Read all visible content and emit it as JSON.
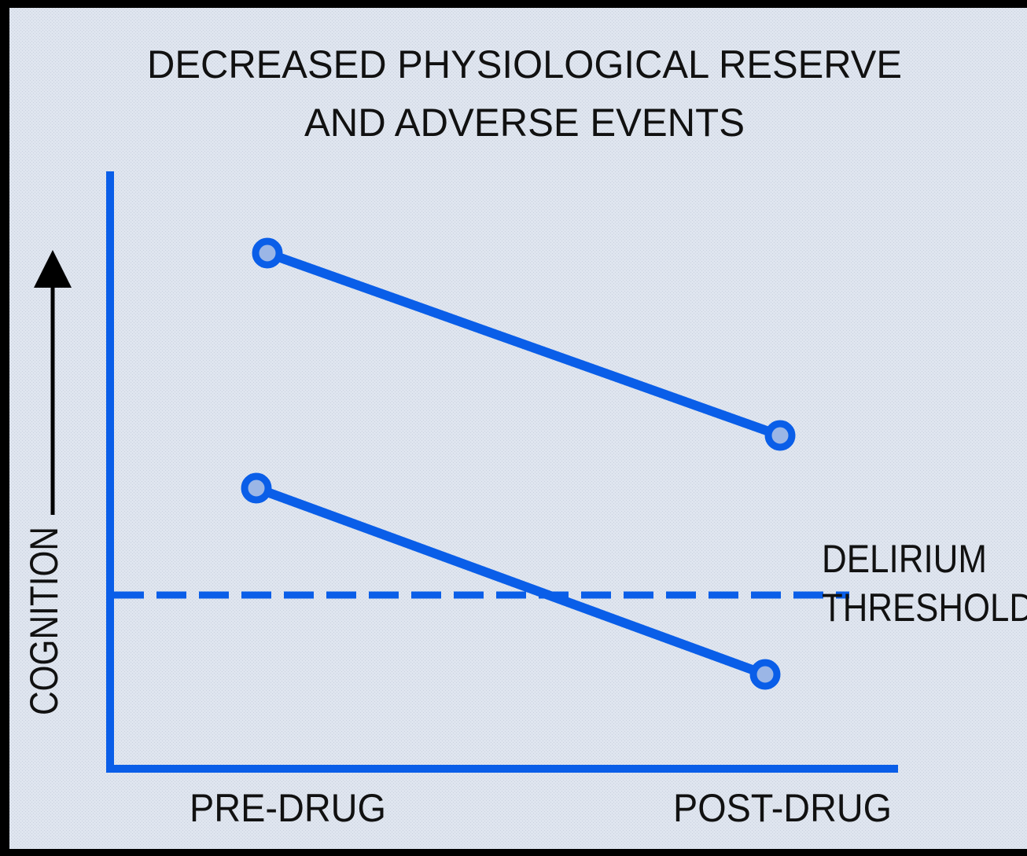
{
  "title": [
    "DECREASED PHYSIOLOGICAL RESERVE",
    "AND ADVERSE EVENTS"
  ],
  "y_axis_label": "COGNITION",
  "x_labels": [
    "PRE-DRUG",
    "POST-DRUG"
  ],
  "threshold_label": [
    "DELIRIUM",
    "THRESHOLD"
  ]
}
